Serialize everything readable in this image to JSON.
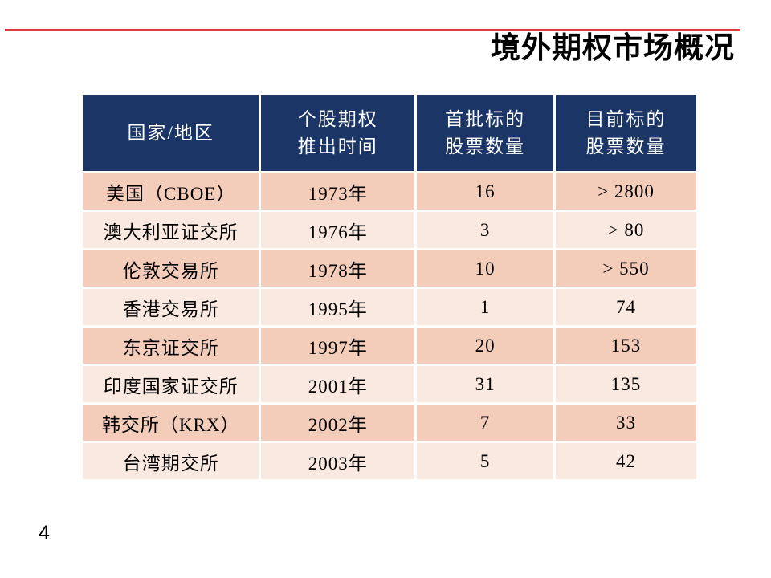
{
  "slide": {
    "title": "境外期权市场概况",
    "page_number": "4"
  },
  "colors": {
    "accent_red": "#DC3A3E",
    "header_bg": "#1B3666",
    "header_text": "#FFFFFF",
    "row_odd_bg": "#F3CDB9",
    "row_even_bg": "#FAE9E0",
    "body_text": "#000000"
  },
  "table": {
    "columns": [
      "国家/地区",
      "个股期权\n推出时间",
      "首批标的\n股票数量",
      "目前标的\n股票数量"
    ],
    "rows": [
      [
        "美国（CBOE）",
        "1973年",
        "16",
        "> 2800"
      ],
      [
        "澳大利亚证交所",
        "1976年",
        "3",
        "> 80"
      ],
      [
        "伦敦交易所",
        "1978年",
        "10",
        "> 550"
      ],
      [
        "香港交易所",
        "1995年",
        "1",
        "74"
      ],
      [
        "东京证交所",
        "1997年",
        "20",
        "153"
      ],
      [
        "印度国家证交所",
        "2001年",
        "31",
        "135"
      ],
      [
        "韩交所（KRX）",
        "2002年",
        "7",
        "33"
      ],
      [
        "台湾期交所",
        "2003年",
        "5",
        "42"
      ]
    ]
  }
}
